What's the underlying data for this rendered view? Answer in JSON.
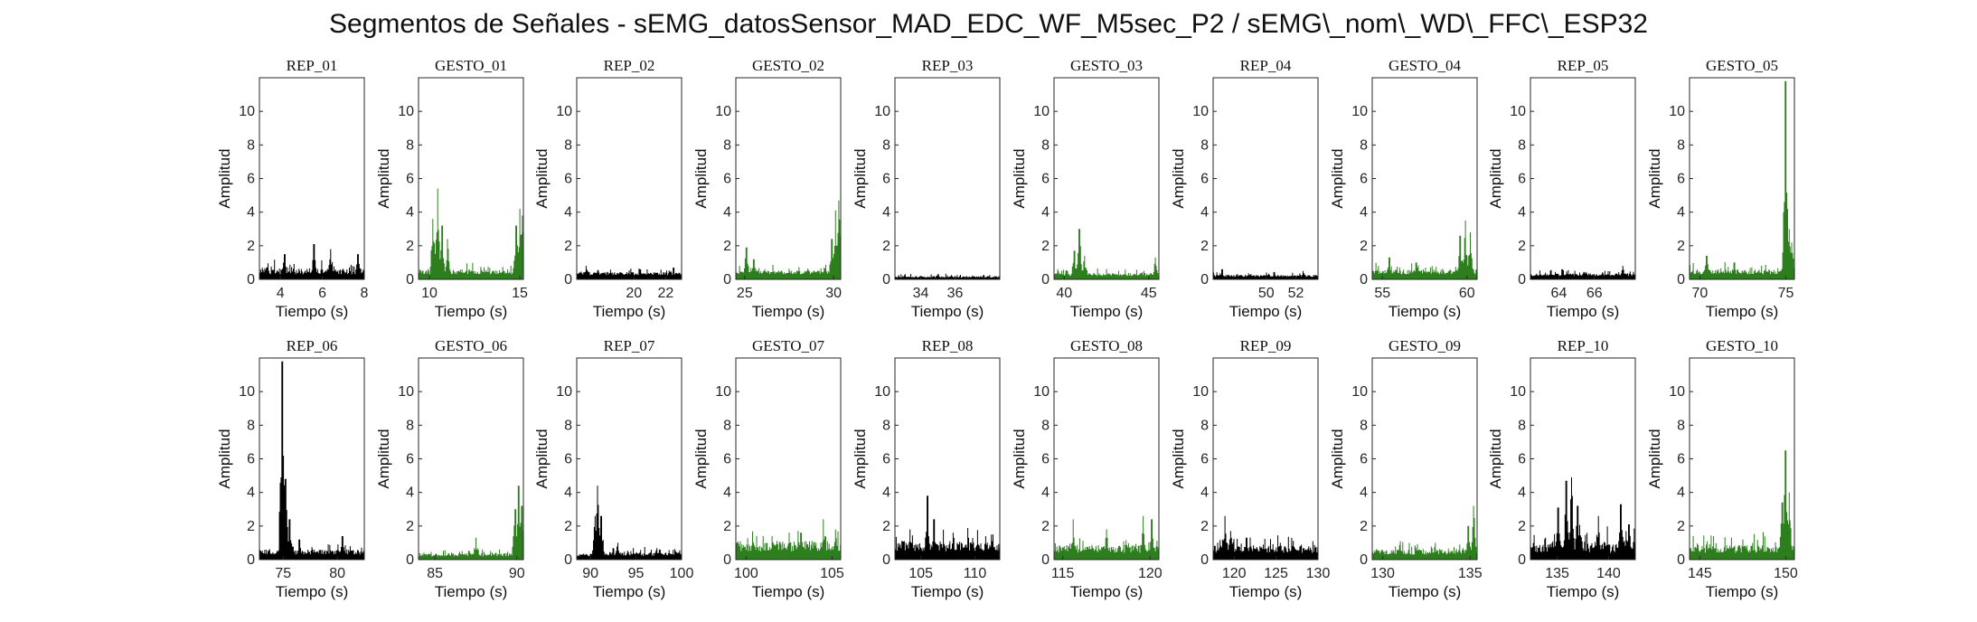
{
  "title": "Segmentos de Señales - sEMG_datosSensor_MAD_EDC_WF_M5sec_P2 / sEMG\\_nom\\_WD\\_FFC\\_ESP32",
  "colors": {
    "rep": "#000000",
    "gesto": "#2d7f1e",
    "axis": "#262626"
  },
  "chart_data": {
    "type": "line",
    "grid": false,
    "layout": {
      "rows": 2,
      "cols": 10
    },
    "ylabel": "Amplitud",
    "xlabel": "Tiempo (s)",
    "ylim": [
      0,
      12
    ],
    "yticks": [
      0,
      2,
      4,
      6,
      8,
      10
    ],
    "panels": [
      {
        "title": "REP_01",
        "kind": "rep",
        "xlim": [
          3,
          8
        ],
        "xticks": [
          4,
          6,
          8
        ],
        "baseline": 0.3,
        "noise": 0.6,
        "peaks": [
          [
            4.2,
            1.5
          ],
          [
            5.6,
            2.1
          ],
          [
            6.4,
            1.8
          ],
          [
            7.7,
            1.5
          ]
        ]
      },
      {
        "title": "GESTO_01",
        "kind": "gesto",
        "xlim": [
          9.4,
          15.2
        ],
        "xticks": [
          10,
          15
        ],
        "baseline": 0.3,
        "noise": 0.5,
        "peaks": [
          [
            10.2,
            3.6
          ],
          [
            10.45,
            5.4
          ],
          [
            10.7,
            3.2
          ],
          [
            11.0,
            2.4
          ],
          [
            14.8,
            3.2
          ],
          [
            15.0,
            4.2
          ],
          [
            15.15,
            3.8
          ]
        ]
      },
      {
        "title": "REP_02",
        "kind": "rep",
        "xlim": [
          16.4,
          23
        ],
        "xticks": [
          20,
          22
        ],
        "baseline": 0.25,
        "noise": 0.3,
        "peaks": [
          [
            17.0,
            0.8
          ],
          [
            20.4,
            0.6
          ],
          [
            22.5,
            0.7
          ]
        ]
      },
      {
        "title": "GESTO_02",
        "kind": "gesto",
        "xlim": [
          24.5,
          30.4
        ],
        "xticks": [
          25,
          30
        ],
        "baseline": 0.3,
        "noise": 0.4,
        "peaks": [
          [
            25.1,
            1.9
          ],
          [
            25.5,
            1.2
          ],
          [
            29.9,
            2.4
          ],
          [
            30.1,
            4.1
          ],
          [
            30.3,
            4.7
          ]
        ]
      },
      {
        "title": "REP_03",
        "kind": "rep",
        "xlim": [
          32.5,
          38.6
        ],
        "xticks": [
          34,
          36
        ],
        "baseline": 0.1,
        "noise": 0.15,
        "peaks": [
          [
            35.0,
            0.3
          ]
        ]
      },
      {
        "title": "GESTO_03",
        "kind": "gesto",
        "xlim": [
          39.4,
          45.6
        ],
        "xticks": [
          40,
          45
        ],
        "baseline": 0.2,
        "noise": 0.3,
        "peaks": [
          [
            40.6,
            1.7
          ],
          [
            40.9,
            3.0
          ],
          [
            41.2,
            1.4
          ],
          [
            45.4,
            1.3
          ]
        ]
      },
      {
        "title": "REP_04",
        "kind": "rep",
        "xlim": [
          46.4,
          53.5
        ],
        "xticks": [
          50,
          52
        ],
        "baseline": 0.15,
        "noise": 0.2,
        "peaks": [
          [
            47.0,
            0.6
          ],
          [
            52.5,
            0.5
          ]
        ]
      },
      {
        "title": "GESTO_04",
        "kind": "gesto",
        "xlim": [
          54.4,
          60.6
        ],
        "xticks": [
          55,
          60
        ],
        "baseline": 0.3,
        "noise": 0.5,
        "peaks": [
          [
            55.4,
            1.3
          ],
          [
            57.0,
            1.0
          ],
          [
            59.6,
            2.6
          ],
          [
            59.9,
            3.5
          ],
          [
            60.2,
            2.8
          ]
        ]
      },
      {
        "title": "REP_05",
        "kind": "rep",
        "xlim": [
          62.4,
          68.3
        ],
        "xticks": [
          64,
          66
        ],
        "baseline": 0.2,
        "noise": 0.25,
        "peaks": [
          [
            64.2,
            0.6
          ],
          [
            67.6,
            0.8
          ]
        ]
      },
      {
        "title": "GESTO_05",
        "kind": "gesto",
        "xlim": [
          69.4,
          75.5
        ],
        "xticks": [
          70,
          75
        ],
        "baseline": 0.3,
        "noise": 0.5,
        "peaks": [
          [
            70.4,
            1.4
          ],
          [
            72.0,
            1.0
          ],
          [
            75.0,
            11.8
          ],
          [
            75.2,
            3.0
          ],
          [
            75.35,
            2.2
          ]
        ]
      },
      {
        "title": "REP_06",
        "kind": "rep",
        "xlim": [
          72.8,
          82.5
        ],
        "xticks": [
          75,
          80
        ],
        "baseline": 0.3,
        "noise": 0.5,
        "peaks": [
          [
            74.9,
            11.8
          ],
          [
            75.2,
            4.8
          ],
          [
            75.6,
            2.4
          ],
          [
            76.5,
            1.2
          ],
          [
            80.5,
            1.4
          ]
        ]
      },
      {
        "title": "GESTO_06",
        "kind": "gesto",
        "xlim": [
          84,
          90.4
        ],
        "xticks": [
          85,
          90
        ],
        "baseline": 0.2,
        "noise": 0.3,
        "peaks": [
          [
            87.5,
            1.3
          ],
          [
            89.9,
            3.0
          ],
          [
            90.1,
            4.4
          ],
          [
            90.3,
            3.2
          ]
        ]
      },
      {
        "title": "REP_07",
        "kind": "rep",
        "xlim": [
          88.5,
          100
        ],
        "xticks": [
          90,
          95,
          100
        ],
        "baseline": 0.2,
        "noise": 0.4,
        "peaks": [
          [
            90.5,
            2.6
          ],
          [
            90.8,
            4.4
          ],
          [
            91.2,
            2.6
          ],
          [
            93.0,
            1.0
          ],
          [
            97.6,
            0.6
          ]
        ]
      },
      {
        "title": "GESTO_07",
        "kind": "gesto",
        "xlim": [
          99.4,
          105.5
        ],
        "xticks": [
          100,
          105
        ],
        "baseline": 0.5,
        "noise": 1.0,
        "peaks": [
          [
            101.5,
            1.4
          ],
          [
            103.2,
            1.6
          ],
          [
            104.5,
            2.4
          ],
          [
            105.2,
            1.8
          ]
        ]
      },
      {
        "title": "REP_08",
        "kind": "rep",
        "xlim": [
          102.6,
          112.3
        ],
        "xticks": [
          105,
          110
        ],
        "baseline": 0.5,
        "noise": 1.0,
        "peaks": [
          [
            104.0,
            1.8
          ],
          [
            105.6,
            3.8
          ],
          [
            106.2,
            2.4
          ],
          [
            108.0,
            1.6
          ],
          [
            111.0,
            1.4
          ]
        ]
      },
      {
        "title": "GESTO_08",
        "kind": "gesto",
        "xlim": [
          114.5,
          120.5
        ],
        "xticks": [
          115,
          120
        ],
        "baseline": 0.4,
        "noise": 0.8,
        "peaks": [
          [
            115.6,
            2.4
          ],
          [
            117.5,
            1.8
          ],
          [
            119.6,
            2.6
          ],
          [
            120.1,
            2.4
          ]
        ]
      },
      {
        "title": "REP_09",
        "kind": "rep",
        "xlim": [
          117.5,
          130
        ],
        "xticks": [
          120,
          125,
          130
        ],
        "baseline": 0.4,
        "noise": 0.7,
        "peaks": [
          [
            118.9,
            2.6
          ],
          [
            119.6,
            1.7
          ],
          [
            121.5,
            1.3
          ],
          [
            125.5,
            1.0
          ]
        ]
      },
      {
        "title": "GESTO_09",
        "kind": "gesto",
        "xlim": [
          129.4,
          135.4
        ],
        "xticks": [
          130,
          135
        ],
        "baseline": 0.3,
        "noise": 0.5,
        "peaks": [
          [
            131.0,
            1.1
          ],
          [
            133.0,
            1.0
          ],
          [
            134.9,
            2.0
          ],
          [
            135.2,
            3.2
          ]
        ]
      },
      {
        "title": "REP_10",
        "kind": "rep",
        "xlim": [
          132.4,
          142.6
        ],
        "xticks": [
          135,
          140
        ],
        "baseline": 0.4,
        "noise": 1.2,
        "peaks": [
          [
            135.1,
            3.1
          ],
          [
            135.9,
            4.7
          ],
          [
            136.4,
            4.9
          ],
          [
            137.0,
            3.2
          ],
          [
            139.0,
            2.6
          ],
          [
            141.2,
            3.3
          ],
          [
            142.0,
            2.1
          ]
        ]
      },
      {
        "title": "GESTO_10",
        "kind": "gesto",
        "xlim": [
          144.4,
          150.5
        ],
        "xticks": [
          145,
          150
        ],
        "baseline": 0.4,
        "noise": 0.8,
        "peaks": [
          [
            145.8,
            1.4
          ],
          [
            147.5,
            1.2
          ],
          [
            149.8,
            3.4
          ],
          [
            150.0,
            6.5
          ],
          [
            150.2,
            4.0
          ]
        ]
      }
    ]
  }
}
